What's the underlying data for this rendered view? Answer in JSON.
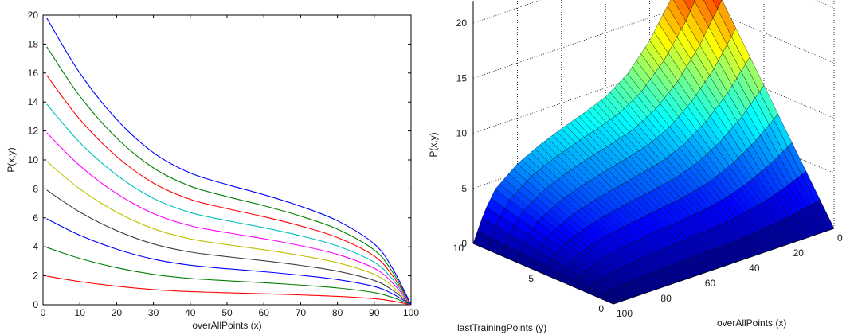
{
  "chart_data": [
    {
      "type": "line",
      "xlabel": "overAllPoints (x)",
      "ylabel": "P(x,y)",
      "xlim": [
        0,
        100
      ],
      "ylim": [
        0,
        20
      ],
      "xticks": [
        "0",
        "10",
        "20",
        "30",
        "40",
        "50",
        "60",
        "70",
        "80",
        "90",
        "100"
      ],
      "yticks": [
        "0",
        "2",
        "4",
        "6",
        "8",
        "10",
        "12",
        "14",
        "16",
        "18",
        "20"
      ],
      "grid": false,
      "series": [
        {
          "color": "#ff0000",
          "values_at_x": {
            "x": [
              1,
              10,
              20,
              30,
              40,
              50,
              60,
              70,
              80,
              90,
              95,
              100
            ],
            "y": [
              1.98,
              1.6,
              1.28,
              1.05,
              0.91,
              0.83,
              0.76,
              0.68,
              0.58,
              0.42,
              0.25,
              0
            ]
          }
        },
        {
          "color": "#008000",
          "values_at_x": {
            "x": [
              1,
              10,
              20,
              30,
              40,
              50,
              60,
              70,
              80,
              90,
              95,
              100
            ],
            "y": [
              3.96,
              3.2,
              2.56,
              2.1,
              1.82,
              1.66,
              1.52,
              1.36,
              1.16,
              0.84,
              0.5,
              0
            ]
          }
        },
        {
          "color": "#0000ff",
          "values_at_x": {
            "x": [
              1,
              10,
              20,
              30,
              40,
              50,
              60,
              70,
              80,
              90,
              95,
              100
            ],
            "y": [
              5.94,
              4.8,
              3.84,
              3.15,
              2.73,
              2.49,
              2.28,
              2.04,
              1.74,
              1.26,
              0.75,
              0
            ]
          }
        },
        {
          "color": "#404040",
          "values_at_x": {
            "x": [
              1,
              10,
              20,
              30,
              40,
              50,
              60,
              70,
              80,
              90,
              95,
              100
            ],
            "y": [
              7.92,
              6.4,
              5.12,
              4.2,
              3.64,
              3.32,
              3.04,
              2.72,
              2.32,
              1.68,
              1.0,
              0
            ]
          }
        },
        {
          "color": "#bfbf00",
          "values_at_x": {
            "x": [
              1,
              10,
              20,
              30,
              40,
              50,
              60,
              70,
              80,
              90,
              95,
              100
            ],
            "y": [
              9.9,
              8.0,
              6.4,
              5.25,
              4.55,
              4.15,
              3.8,
              3.4,
              2.9,
              2.1,
              1.25,
              0
            ]
          }
        },
        {
          "color": "#ff00ff",
          "values_at_x": {
            "x": [
              1,
              10,
              20,
              30,
              40,
              50,
              60,
              70,
              80,
              90,
              95,
              100
            ],
            "y": [
              11.88,
              9.6,
              7.68,
              6.3,
              5.46,
              4.98,
              4.56,
              4.08,
              3.48,
              2.52,
              1.5,
              0
            ]
          }
        },
        {
          "color": "#00bfbf",
          "values_at_x": {
            "x": [
              1,
              10,
              20,
              30,
              40,
              50,
              60,
              70,
              80,
              90,
              95,
              100
            ],
            "y": [
              13.86,
              11.2,
              8.96,
              7.35,
              6.37,
              5.81,
              5.32,
              4.76,
              4.06,
              2.94,
              1.75,
              0
            ]
          }
        },
        {
          "color": "#ff0000",
          "values_at_x": {
            "x": [
              1,
              10,
              20,
              30,
              40,
              50,
              60,
              70,
              80,
              90,
              95,
              100
            ],
            "y": [
              15.84,
              12.8,
              10.24,
              8.4,
              7.28,
              6.64,
              6.08,
              5.44,
              4.64,
              3.36,
              2.0,
              0
            ]
          }
        },
        {
          "color": "#008000",
          "values_at_x": {
            "x": [
              1,
              10,
              20,
              30,
              40,
              50,
              60,
              70,
              80,
              90,
              95,
              100
            ],
            "y": [
              17.82,
              14.4,
              11.52,
              9.45,
              8.19,
              7.47,
              6.84,
              6.12,
              5.22,
              3.78,
              2.25,
              0
            ]
          }
        },
        {
          "color": "#0000ff",
          "values_at_x": {
            "x": [
              1,
              10,
              20,
              30,
              40,
              50,
              60,
              70,
              80,
              90,
              95,
              100
            ],
            "y": [
              19.8,
              16.0,
              12.8,
              10.5,
              9.1,
              8.3,
              7.6,
              6.8,
              5.8,
              4.2,
              2.5,
              0
            ]
          }
        }
      ]
    },
    {
      "type": "surface",
      "xlabel": "overAllPoints (x)",
      "ylabel": "lastTrainingPoints (y)",
      "zlabel": "P(x,y)",
      "xlim": [
        0,
        100
      ],
      "ylim": [
        0,
        10
      ],
      "zlim": [
        0,
        20
      ],
      "xticks": [
        "100",
        "80",
        "60",
        "40",
        "20",
        "0"
      ],
      "yticks": [
        "0",
        "5",
        "10"
      ],
      "zticks": [
        "0",
        "5",
        "10",
        "15",
        "20"
      ],
      "grid": true,
      "colormap": "jet",
      "surface": "P(x,y) = (y/10) * f(x), with f the upper curve of the left panel"
    }
  ]
}
